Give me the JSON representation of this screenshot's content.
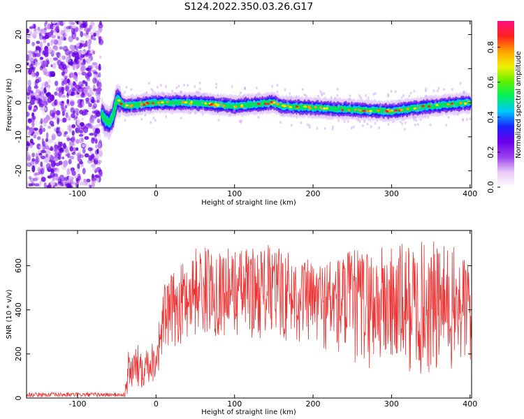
{
  "title": "S124.2022.350.03.26.G17",
  "chart_data": [
    {
      "type": "heatmap",
      "xlabel": "Height of straight line (km)",
      "ylabel": "Frequency (Hz)",
      "xlim": [
        -165,
        402
      ],
      "ylim": [
        -25,
        24
      ],
      "xticks": [
        -100,
        0,
        100,
        200,
        300,
        400
      ],
      "yticks": [
        -20,
        -10,
        0,
        10,
        20
      ],
      "colorbar": {
        "label": "Normalized spectral amplitude",
        "range": [
          0,
          0.95
        ],
        "ticks": [
          0.0,
          0.2,
          0.4,
          0.6,
          0.8
        ],
        "tick_labels": [
          "0.0",
          "0.2",
          "0.4",
          "0.6",
          "0.8"
        ],
        "colormap": [
          "#ffffff",
          "#e8c8f8",
          "#9a40f0",
          "#6a00e8",
          "#1a20ff",
          "#00c8ff",
          "#00f060",
          "#60f000",
          "#f0f000",
          "#ffa000",
          "#ff2020",
          "#ff1080"
        ]
      },
      "ridge_frequency": {
        "x": [
          -165,
          -75,
          -70,
          -65,
          -60,
          -55,
          -50,
          -40,
          0,
          50,
          100,
          150,
          160,
          200,
          250,
          300,
          350,
          400
        ],
        "y": [
          null,
          null,
          -3,
          -5,
          -6,
          -4,
          1,
          -1,
          0,
          0,
          -1,
          0,
          -1,
          -1.5,
          -2,
          -2.5,
          -1,
          0
        ],
        "description_noise_region_x": [
          -165,
          -70
        ]
      }
    },
    {
      "type": "line",
      "xlabel": "Height of straight line (km)",
      "ylabel": "SNR (10 * v/v)",
      "xlim": [
        -165,
        402
      ],
      "ylim": [
        0,
        760
      ],
      "xticks": [
        -100,
        0,
        100,
        200,
        300,
        400
      ],
      "yticks": [
        0,
        200,
        400,
        600
      ],
      "color": "#ee3333",
      "envelope": {
        "x": [
          -165,
          -40,
          -35,
          -20,
          0,
          10,
          20,
          50,
          100,
          150,
          200,
          250,
          300,
          350,
          400
        ],
        "low": [
          5,
          5,
          10,
          40,
          80,
          200,
          220,
          280,
          280,
          260,
          240,
          140,
          120,
          80,
          130
        ],
        "high": [
          25,
          25,
          220,
          250,
          260,
          520,
          560,
          690,
          680,
          700,
          620,
          680,
          700,
          720,
          660
        ]
      }
    }
  ]
}
